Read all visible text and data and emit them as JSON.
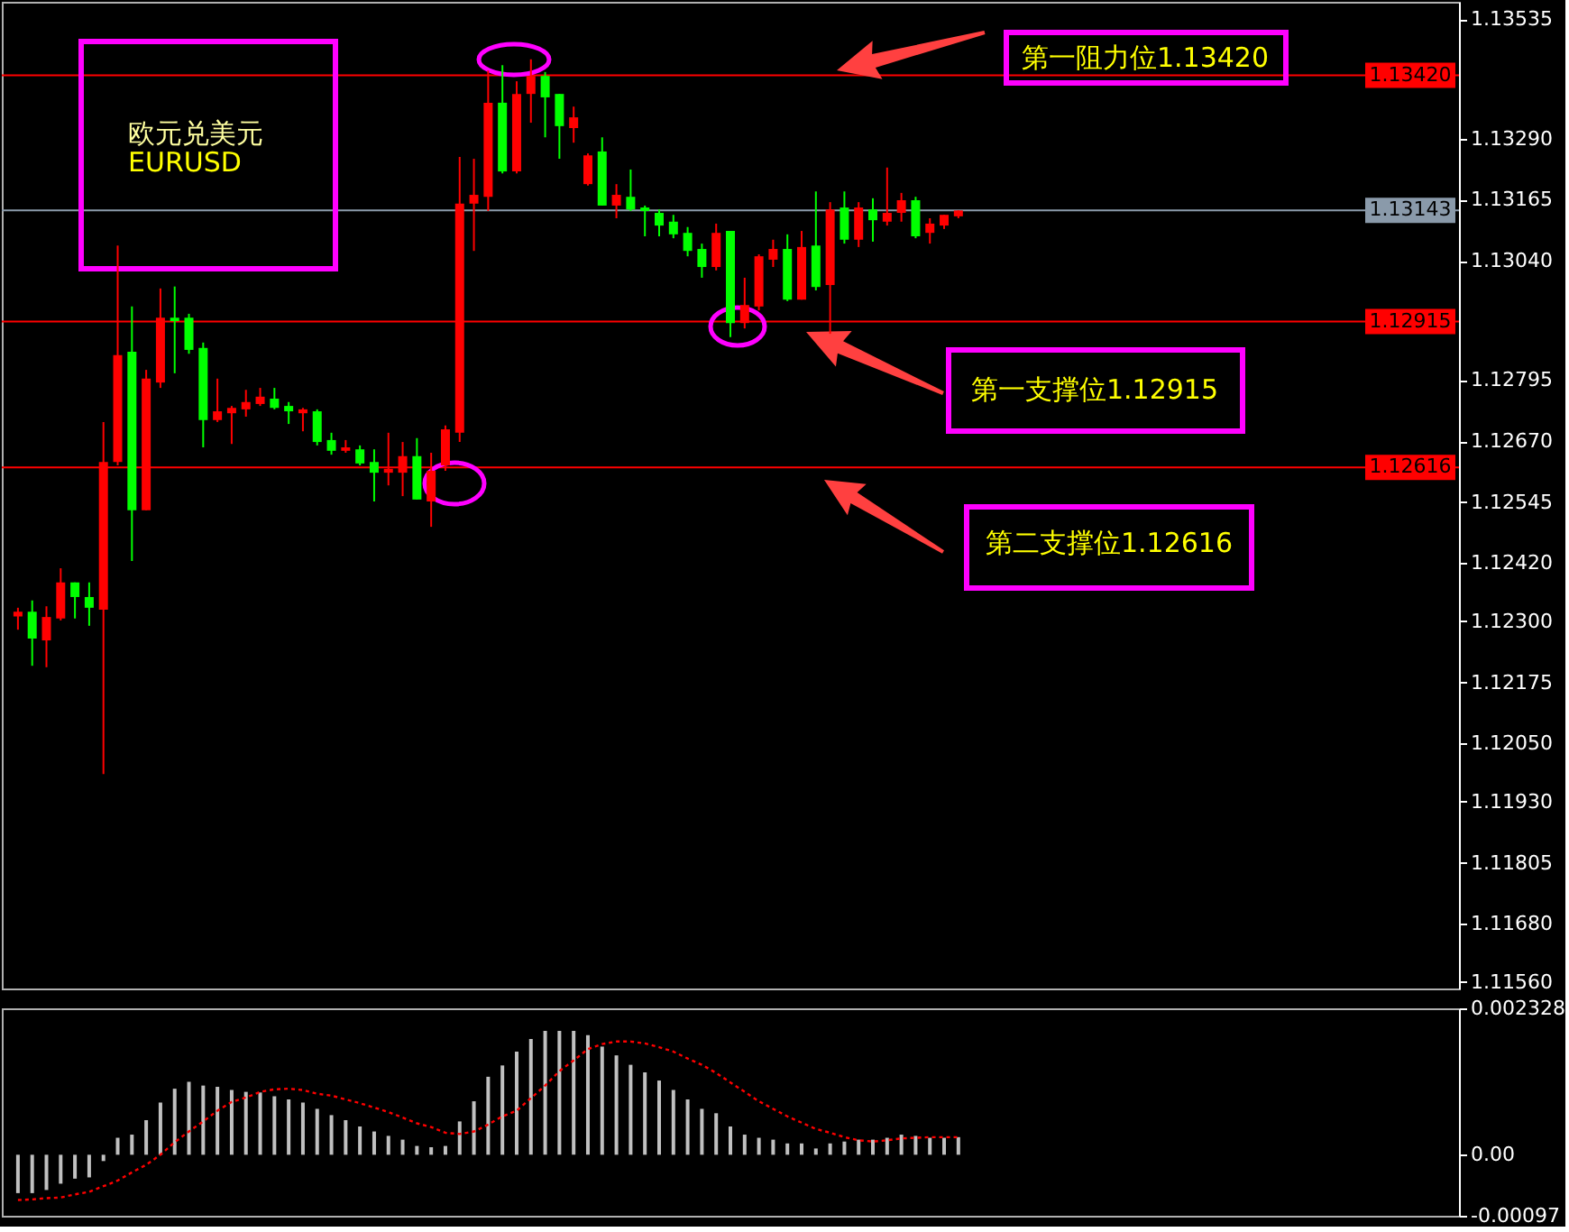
{
  "chart_data": [
    {
      "type": "candlestick",
      "categories": [
        null,
        null,
        null,
        null,
        null,
        null,
        null,
        null,
        null,
        null,
        null,
        null,
        null,
        null,
        null,
        null,
        null,
        null,
        null,
        null,
        null,
        null,
        null,
        null,
        null,
        null,
        null,
        null,
        null,
        null,
        null,
        null,
        null,
        null,
        null,
        null,
        null,
        null,
        null,
        null,
        null,
        null,
        null,
        null,
        null,
        null,
        null,
        null,
        null,
        null,
        null,
        null,
        null,
        null,
        null,
        null,
        null,
        null,
        null,
        null,
        null,
        null,
        null,
        null,
        null,
        null,
        null,
        null,
        null,
        null,
        null,
        null,
        null,
        null,
        null,
        null,
        null,
        null,
        null,
        null,
        null,
        null,
        null,
        null,
        null,
        null,
        null,
        null,
        null,
        null,
        null,
        null,
        null,
        null,
        null,
        null,
        null,
        null,
        null,
        null,
        null
      ],
      "ohlc": [
        [
          1.1231,
          1.12328,
          1.12283,
          1.1232
        ],
        [
          1.1232,
          1.12343,
          1.12209,
          1.12265
        ],
        [
          1.12261,
          1.12331,
          1.12206,
          1.12309
        ],
        [
          1.12306,
          1.12409,
          1.12302,
          1.1238
        ],
        [
          1.1238,
          1.1238,
          1.12306,
          1.1235
        ],
        [
          1.1235,
          1.1238,
          1.12291,
          1.12328
        ],
        [
          1.12324,
          1.12709,
          1.11987,
          1.12627
        ],
        [
          1.12627,
          1.13071,
          1.1262,
          1.12846
        ],
        [
          1.12853,
          1.12946,
          1.12424,
          1.12528
        ],
        [
          1.12528,
          1.12816,
          1.12528,
          1.12798
        ],
        [
          1.1279,
          1.12983,
          1.12779,
          1.12923
        ],
        [
          1.12923,
          1.12987,
          1.12809,
          1.12916
        ],
        [
          1.12923,
          1.12931,
          1.12849,
          1.12857
        ],
        [
          1.12861,
          1.12872,
          1.12657,
          1.12713
        ],
        [
          1.12713,
          1.12798,
          1.12709,
          1.12731
        ],
        [
          1.12727,
          1.12742,
          1.12664,
          1.12738
        ],
        [
          1.12735,
          1.12775,
          1.1272,
          1.1275
        ],
        [
          1.12746,
          1.12779,
          1.12742,
          1.12761
        ],
        [
          1.12757,
          1.12779,
          1.12735,
          1.12738
        ],
        [
          1.12742,
          1.1275,
          1.12705,
          1.12731
        ],
        [
          1.12727,
          1.12738,
          1.1269,
          1.12735
        ],
        [
          1.12731,
          1.12735,
          1.12661,
          1.12668
        ],
        [
          1.12672,
          1.12687,
          1.12642,
          1.1265
        ],
        [
          1.1265,
          1.12672,
          1.12646,
          1.12657
        ],
        [
          1.12653,
          1.12661,
          1.1262,
          1.12624
        ],
        [
          1.12627,
          1.12653,
          1.12546,
          1.12605
        ],
        [
          1.12605,
          1.12687,
          1.12579,
          1.12613
        ],
        [
          1.12605,
          1.12668,
          1.12557,
          1.12639
        ],
        [
          1.12639,
          1.12676,
          1.1255,
          1.1255
        ],
        [
          1.12546,
          1.12646,
          1.12494,
          1.12609
        ],
        [
          1.1262,
          1.12702,
          1.12609,
          1.12694
        ],
        [
          1.12687,
          1.13253,
          1.12668,
          1.13157
        ],
        [
          1.13157,
          1.13249,
          1.1306,
          1.13175
        ],
        [
          1.13171,
          1.1343,
          1.13142,
          1.13364
        ],
        [
          1.13364,
          1.13441,
          1.13219,
          1.13223
        ],
        [
          1.13223,
          1.13408,
          1.13219,
          1.13382
        ],
        [
          1.13382,
          1.13453,
          1.13323,
          1.13419
        ],
        [
          1.13419,
          1.13427,
          1.13293,
          1.13375
        ],
        [
          1.13382,
          1.13382,
          1.13249,
          1.13316
        ],
        [
          1.13312,
          1.13356,
          1.13282,
          1.13334
        ],
        [
          1.13197,
          1.1326,
          1.13194,
          1.13256
        ],
        [
          1.13264,
          1.13293,
          1.13153,
          1.13153
        ],
        [
          1.13153,
          1.13197,
          1.13127,
          1.13175
        ],
        [
          1.13171,
          1.13227,
          1.13142,
          1.13145
        ],
        [
          1.13149,
          1.13153,
          1.1309,
          1.13142
        ],
        [
          1.13138,
          1.13145,
          1.1309,
          1.13112
        ],
        [
          1.1312,
          1.13134,
          1.13086,
          1.13094
        ],
        [
          1.13097,
          1.13109,
          1.13049,
          1.1306
        ],
        [
          1.13064,
          1.13075,
          1.13005,
          1.13027
        ],
        [
          1.13027,
          1.13116,
          1.1302,
          1.13097
        ],
        [
          1.13101,
          1.13101,
          1.12883,
          1.12912
        ],
        [
          1.12912,
          1.13005,
          1.12901,
          1.12949
        ],
        [
          1.12946,
          1.13053,
          1.12938,
          1.13049
        ],
        [
          1.13042,
          1.13083,
          1.13027,
          1.13064
        ],
        [
          1.13064,
          1.13094,
          1.12957,
          1.1296
        ],
        [
          1.1296,
          1.13101,
          1.1296,
          1.13068
        ],
        [
          1.13071,
          1.13182,
          1.12979,
          1.12986
        ],
        [
          1.1299,
          1.1316,
          1.1289,
          1.13145
        ],
        [
          1.13149,
          1.13182,
          1.13075,
          1.13083
        ],
        [
          1.13083,
          1.1316,
          1.13068,
          1.13149
        ],
        [
          1.13145,
          1.13168,
          1.13079,
          1.13123
        ],
        [
          1.1312,
          1.13231,
          1.13112,
          1.13138
        ],
        [
          1.13138,
          1.13179,
          1.1312,
          1.13164
        ],
        [
          1.13164,
          1.13171,
          1.13086,
          1.1309
        ],
        [
          1.13097,
          1.13127,
          1.13075,
          1.13116
        ],
        [
          1.13112,
          1.13134,
          1.13105,
          1.13134
        ],
        [
          1.13131,
          1.13143,
          1.13127,
          1.13143
        ],
        null,
        null,
        null,
        null,
        null,
        null,
        null,
        null,
        null,
        null,
        null,
        null,
        null,
        null,
        null,
        null,
        null,
        null,
        null,
        null,
        null,
        null,
        null,
        null,
        null,
        null,
        null,
        null,
        null,
        null,
        null,
        null,
        null,
        null
      ],
      "colors": [
        "#ff0000",
        "#00ff00",
        "#ff0000",
        "#ff0000",
        "#00ff00",
        "#00ff00",
        "#ff0000",
        "#ff0000",
        "#00ff00",
        "#ff0000",
        "#ff0000",
        "#00ff00",
        "#00ff00",
        "#00ff00",
        "#ff0000",
        "#ff0000",
        "#ff0000",
        "#ff0000",
        "#00ff00",
        "#00ff00",
        "#ff0000",
        "#00ff00",
        "#00ff00",
        "#ff0000",
        "#00ff00",
        "#00ff00",
        "#ff0000",
        "#ff0000",
        "#00ff00",
        "#ff0000",
        "#ff0000",
        "#ff0000",
        "#ff0000",
        "#ff0000",
        "#00ff00",
        "#ff0000",
        "#ff0000",
        "#00ff00",
        "#00ff00",
        "#ff0000",
        "#ff0000",
        "#00ff00",
        "#ff0000",
        "#00ff00",
        "#00ff00",
        "#00ff00",
        "#00ff00",
        "#00ff00",
        "#00ff00",
        "#ff0000",
        "#00ff00",
        "#ff0000",
        "#ff0000",
        "#ff0000",
        "#00ff00",
        "#ff0000",
        "#00ff00",
        "#ff0000",
        "#00ff00",
        "#ff0000",
        "#00ff00",
        "#ff0000",
        "#ff0000",
        "#00ff00",
        "#ff0000",
        "#ff0000",
        "#ff0000",
        null,
        null,
        null,
        null,
        null,
        null,
        null,
        null,
        null,
        null,
        null,
        null,
        null,
        null,
        null,
        null,
        null,
        null,
        null,
        null,
        null,
        null,
        null,
        null,
        null,
        null,
        null,
        null,
        null,
        null,
        null,
        null,
        null,
        null
      ],
      "ylim": [
        1.11547,
        1.13571
      ],
      "yticks": [
        1.13535,
        {
          "value": 1.1329,
          "label": "1.13290"
        },
        1.13165,
        {
          "value": 1.1304,
          "label": "1.13040"
        },
        1.12795,
        {
          "value": 1.1267,
          "label": "1.12670"
        },
        1.12545,
        {
          "value": 1.1242,
          "label": "1.12420"
        },
        {
          "value": 1.123,
          "label": "1.12300"
        },
        1.12175,
        {
          "value": 1.1205,
          "label": "1.12050"
        },
        {
          "value": 1.1193,
          "label": "1.11930"
        },
        1.11805,
        {
          "value": 1.1168,
          "label": "1.11680"
        },
        {
          "value": 1.1156,
          "label": "1.11560"
        }
      ],
      "tick_labels": "y",
      "ref_lines": [
        {
          "axis": "y",
          "value": 1.1342,
          "label": "1.13420",
          "color": "#ff0000"
        },
        {
          "axis": "y",
          "value": 1.13143,
          "label": "1.13143",
          "color": "#8a9aaa"
        },
        {
          "axis": "y",
          "value": 1.12915,
          "label": "1.12915",
          "color": "#ff0000"
        },
        {
          "axis": "y",
          "value": 1.12616,
          "label": "1.12616",
          "color": "#ff0000"
        }
      ],
      "annotations": [
        "欧元兑美元",
        "EURUSD",
        "第一阻力位1.13420",
        "第一支撑位1.12915",
        "第二支撑位1.12616"
      ]
    },
    {
      "type": "bar",
      "categories": [
        null,
        null,
        null,
        null,
        null,
        null,
        null,
        null,
        null,
        null,
        null,
        null,
        null,
        null,
        null,
        null,
        null,
        null,
        null,
        null,
        null,
        null,
        null,
        null,
        null,
        null,
        null,
        null,
        null,
        null,
        null,
        null,
        null,
        null,
        null,
        null,
        null,
        null,
        null,
        null,
        null,
        null,
        null,
        null,
        null,
        null,
        null,
        null,
        null,
        null,
        null,
        null,
        null,
        null,
        null,
        null,
        null,
        null,
        null,
        null,
        null,
        null,
        null,
        null,
        null,
        null,
        null,
        null,
        null,
        null,
        null,
        null,
        null,
        null,
        null,
        null,
        null,
        null,
        null,
        null,
        null,
        null,
        null,
        null,
        null,
        null,
        null,
        null,
        null,
        null,
        null,
        null,
        null,
        null,
        null,
        null,
        null,
        null,
        null,
        null,
        null
      ],
      "series": [
        {
          "color": "#c0c0c0",
          "values": [
            -0.00061,
            -0.00061,
            -0.00056,
            -0.00046,
            -0.00038,
            -0.00036,
            -0.0001,
            0.00027,
            0.00032,
            0.00055,
            0.00083,
            0.00105,
            0.00116,
            0.0011,
            0.00108,
            0.00103,
            0.001,
            0.00099,
            0.00093,
            0.00088,
            0.00083,
            0.00073,
            0.00063,
            0.00055,
            0.00045,
            0.00037,
            0.0003,
            0.00024,
            0.00014,
            0.00012,
            0.00014,
            0.00053,
            0.00085,
            0.00124,
            0.00142,
            0.00164,
            0.00184,
            0.00197,
            0.00197,
            0.00197,
            0.0019,
            0.00172,
            0.00158,
            0.00143,
            0.00131,
            0.00118,
            0.00103,
            0.00088,
            0.00073,
            0.00066,
            0.00045,
            0.00032,
            0.00027,
            0.00024,
            0.00018,
            0.00018,
            0.0001,
            0.00018,
            0.00021,
            0.00024,
            0.00024,
            0.00027,
            0.00032,
            0.0003,
            0.00027,
            0.00027,
            0.00028,
            null,
            null,
            null,
            null,
            null,
            null,
            null,
            null,
            null,
            null,
            null,
            null,
            null,
            null,
            null,
            null,
            null,
            null,
            null,
            null,
            null,
            null,
            null,
            null,
            null,
            null,
            null,
            null,
            null,
            null,
            null,
            null,
            null,
            null
          ]
        },
        {
          "type": "line",
          "color": "#ff0000",
          "line_style": "dotted",
          "values": [
            -0.00072,
            -0.00071,
            -0.00069,
            -0.00068,
            -0.00063,
            -0.00059,
            -0.0005,
            -0.00041,
            -0.00028,
            -0.00016,
            0,
            0.0002,
            0.00037,
            0.00053,
            0.0007,
            0.00084,
            0.00091,
            0.001,
            0.00104,
            0.00105,
            0.00103,
            0.00097,
            0.00094,
            0.00088,
            0.00082,
            0.00075,
            0.00068,
            0.00059,
            0.0005,
            0.00044,
            0.00035,
            0.00033,
            0.00037,
            0.00048,
            0.00061,
            0.0007,
            0.0009,
            0.0011,
            0.00133,
            0.0015,
            0.00168,
            0.00176,
            0.0018,
            0.0018,
            0.00177,
            0.00171,
            0.00164,
            0.00153,
            0.00143,
            0.0013,
            0.00115,
            0.001,
            0.00085,
            0.00073,
            0.00061,
            0.00051,
            0.00041,
            0.00035,
            0.00028,
            0.00023,
            0.00021,
            0.00023,
            0.00026,
            0.00027,
            0.00028,
            0.00028,
            0.00028,
            null,
            null,
            null,
            null,
            null,
            null,
            null,
            null,
            null,
            null,
            null,
            null,
            null,
            null,
            null,
            null,
            null,
            null,
            null,
            null,
            null,
            null,
            null,
            null,
            null,
            null,
            null,
            null,
            null,
            null,
            null,
            null,
            null,
            null
          ]
        }
      ],
      "ylim": [
        -0.00097,
        0.002328
      ],
      "yticks": [
        0.002328,
        {
          "value": 0,
          "label": "0.00"
        },
        -0.00097
      ],
      "tick_labels": "y"
    }
  ]
}
